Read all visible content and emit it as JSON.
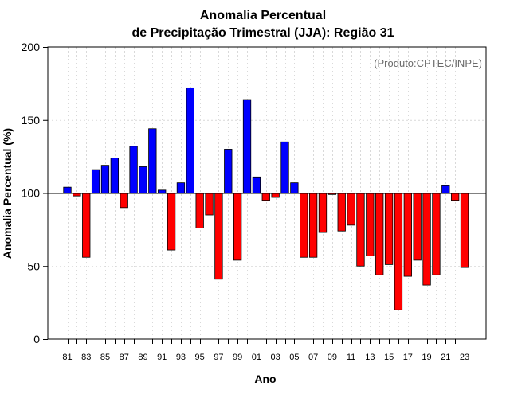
{
  "chart_data": {
    "type": "bar",
    "title": "Anomalia Percentual",
    "subtitle": "de Precipitação Trimestral (JJA): Região 31",
    "xlabel": "Ano",
    "ylabel": "Anomalia Percentual (%)",
    "credit": "(Produto:CPTEC/INPE)",
    "ylim": [
      0,
      200
    ],
    "yticks": [
      0,
      50,
      100,
      150,
      200
    ],
    "yticklabels": [
      "0",
      "50",
      "100",
      "150",
      "200"
    ],
    "baseline": 100,
    "grid": true,
    "colors": {
      "above": "#0000ff",
      "below": "#ff0000",
      "edge": "#000000"
    },
    "categories": [
      "81",
      "82",
      "83",
      "84",
      "85",
      "86",
      "87",
      "88",
      "89",
      "90",
      "91",
      "92",
      "93",
      "94",
      "95",
      "96",
      "97",
      "98",
      "99",
      "00",
      "01",
      "02",
      "03",
      "04",
      "05",
      "06",
      "07",
      "08",
      "09",
      "10",
      "11",
      "12",
      "13",
      "14",
      "15",
      "16",
      "17",
      "18",
      "19",
      "20",
      "21",
      "22",
      "23"
    ],
    "xticklabels": [
      "81",
      "",
      "83",
      "",
      "85",
      "",
      "87",
      "",
      "89",
      "",
      "91",
      "",
      "93",
      "",
      "95",
      "",
      "97",
      "",
      "99",
      "",
      "01",
      "",
      "03",
      "",
      "05",
      "",
      "07",
      "",
      "09",
      "",
      "11",
      "",
      "13",
      "",
      "15",
      "",
      "17",
      "",
      "19",
      "",
      "21",
      "",
      "23"
    ],
    "values": [
      104,
      98,
      56,
      116,
      119,
      124,
      90,
      132,
      118,
      144,
      102,
      61,
      107,
      172,
      76,
      85,
      41,
      130,
      54,
      164,
      111,
      95,
      97,
      135,
      107,
      56,
      56,
      73,
      99,
      74,
      78,
      50,
      57,
      44,
      51,
      20,
      43,
      54,
      37,
      44,
      105,
      95,
      49
    ]
  }
}
